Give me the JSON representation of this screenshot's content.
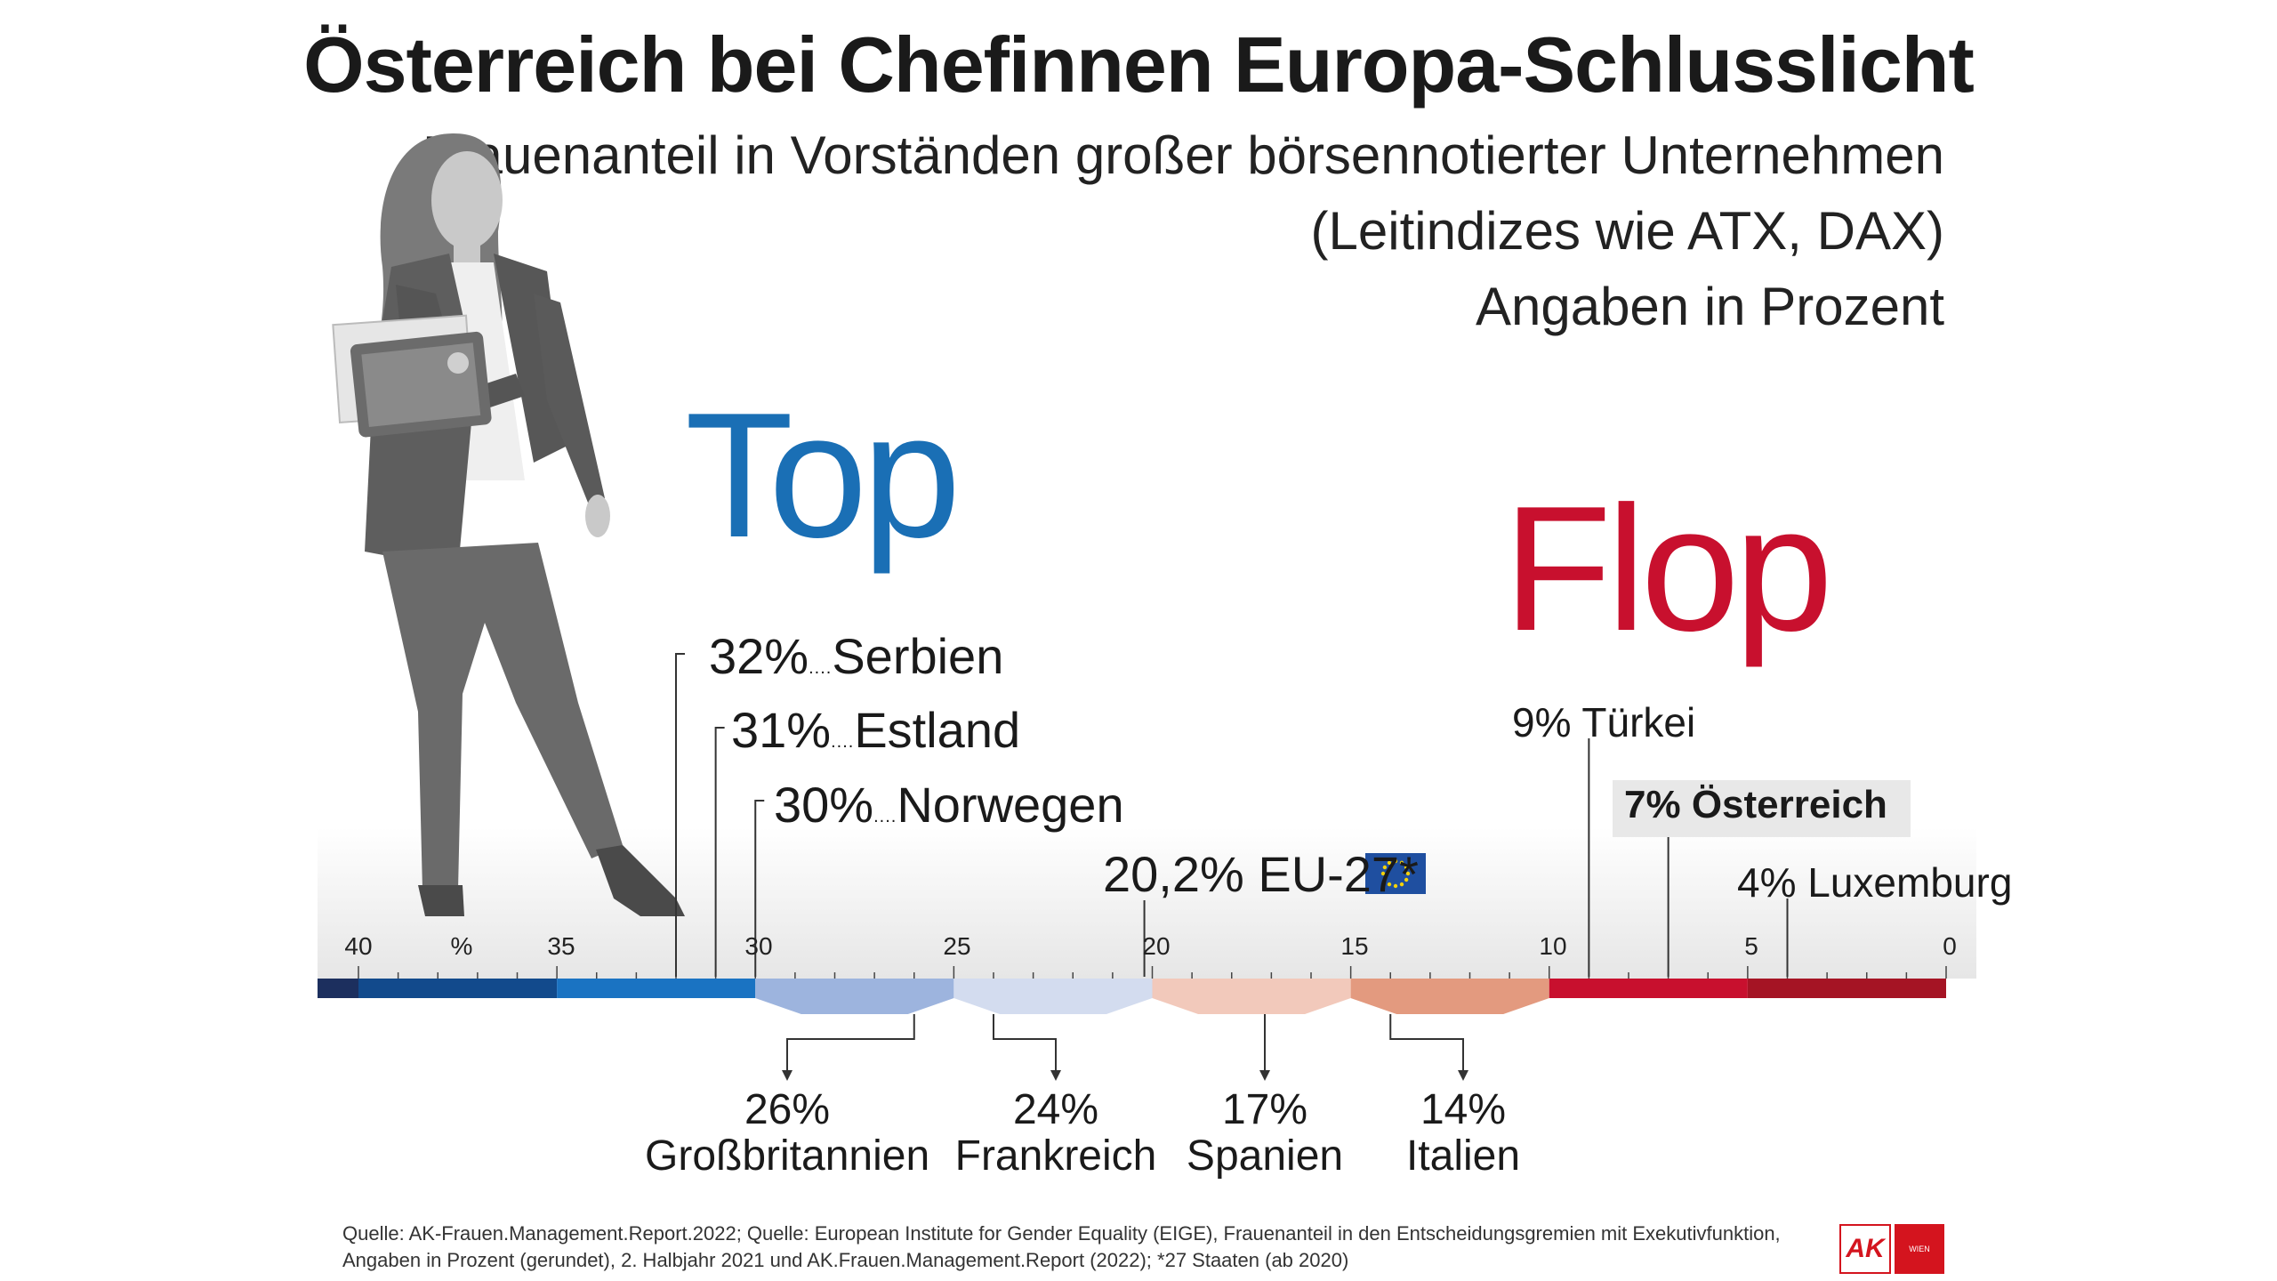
{
  "title": "Österreich bei Chefinnen Europa-Schlusslicht",
  "subtitle": [
    "Frauenanteil in Vorständen großer börsennotierter Unternehmen",
    "(Leitindizes wie ATX, DAX)",
    "Angaben in Prozent"
  ],
  "top_label": "Top",
  "flop_label": "Flop",
  "chart_data": {
    "type": "scale",
    "title": "Österreich bei Chefinnen Europa-Schlusslicht",
    "axis": {
      "unit": "%",
      "range": [
        40,
        0
      ],
      "ticks": [
        "40",
        "%",
        "35",
        "30",
        "25",
        "20",
        "15",
        "10",
        "5",
        "0"
      ]
    },
    "above": [
      {
        "value": 32,
        "value_label": "32%",
        "country": "Serbien",
        "group": "top"
      },
      {
        "value": 31,
        "value_label": "31%",
        "country": "Estland",
        "group": "top"
      },
      {
        "value": 30,
        "value_label": "30%",
        "country": "Norwegen",
        "group": "top"
      },
      {
        "value": 20.2,
        "value_label": "20,2% EU-27*",
        "country": "EU-27*",
        "group": "mid"
      },
      {
        "value": 9,
        "value_label": "9% Türkei",
        "country": "Türkei",
        "group": "flop"
      },
      {
        "value": 7,
        "value_label": "7% Österreich",
        "country": "Österreich",
        "group": "flop"
      },
      {
        "value": 4,
        "value_label": "4% Luxemburg",
        "country": "Luxemburg",
        "group": "flop"
      }
    ],
    "below": [
      {
        "value": 26,
        "value_label": "26%",
        "country": "Großbritannien"
      },
      {
        "value": 24,
        "value_label": "24%",
        "country": "Frankreich"
      },
      {
        "value": 17,
        "value_label": "17%",
        "country": "Spanien"
      },
      {
        "value": 14,
        "value_label": "14%",
        "country": "Italien"
      }
    ],
    "color_bands": [
      {
        "from": 42,
        "to": 40,
        "color": "#1c2f5e"
      },
      {
        "from": 40,
        "to": 35,
        "color": "#124a8c"
      },
      {
        "from": 35,
        "to": 30,
        "color": "#1a73c2"
      },
      {
        "from": 30,
        "to": 25,
        "color": "#9db4de"
      },
      {
        "from": 25,
        "to": 20,
        "color": "#d3dcef"
      },
      {
        "from": 20,
        "to": 15,
        "color": "#f2c9bb"
      },
      {
        "from": 15,
        "to": 10,
        "color": "#e39a7f"
      },
      {
        "from": 10,
        "to": 5,
        "color": "#c8102e"
      },
      {
        "from": 5,
        "to": 0,
        "color": "#a51424"
      }
    ]
  },
  "source": [
    "Quelle: AK-Frauen.Management.Report.2022; Quelle: European Institute for Gender Equality (EIGE), Frauenanteil in den Entscheidungsgremien mit Exekutivfunktion,",
    "Angaben in Prozent (gerundet), 2. Halbjahr 2021 und AK.Frauen.Management.Report (2022); *27 Staaten (ab 2020)"
  ],
  "logo": {
    "ak": "AK",
    "wien": "WIEN"
  },
  "colors": {
    "top_blue": "#1a6fb5",
    "flop_red": "#c8102e"
  }
}
